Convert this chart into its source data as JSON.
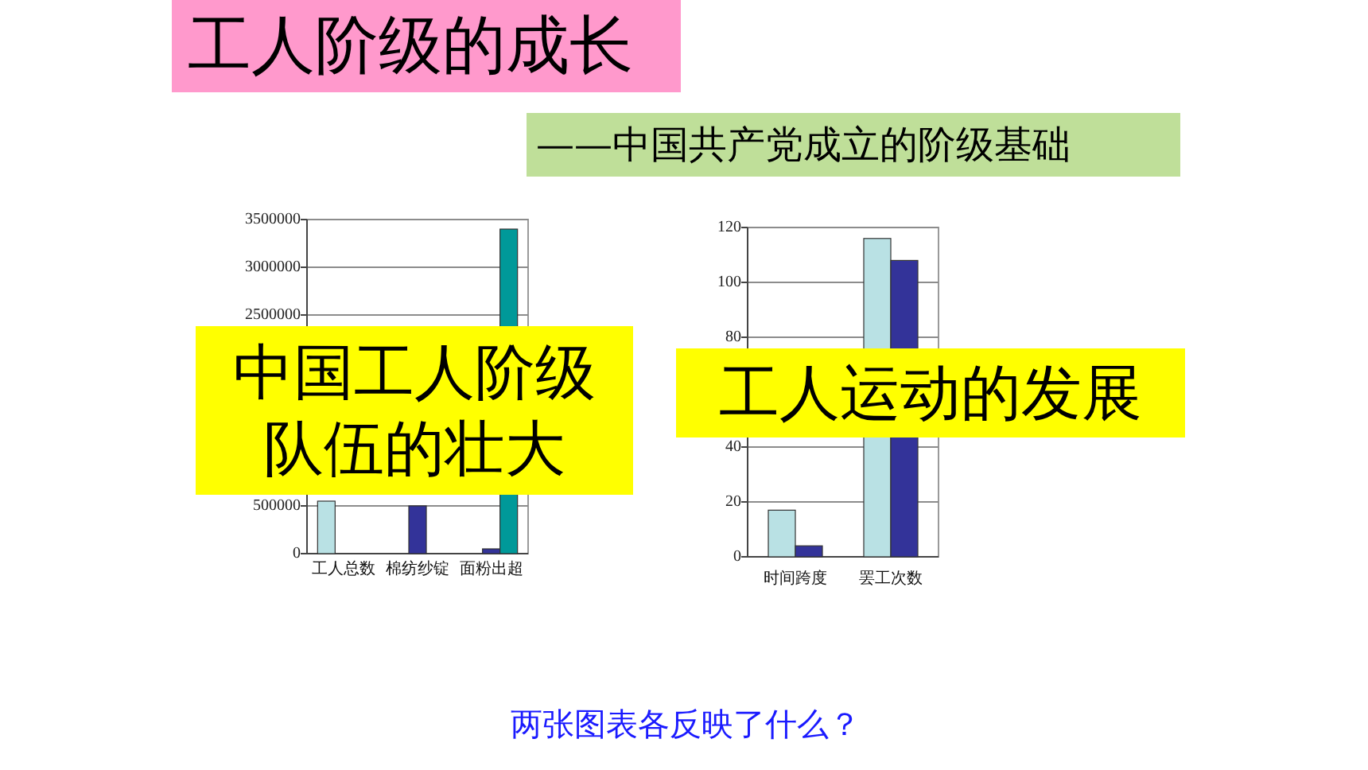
{
  "chart_data": [
    {
      "type": "other",
      "title": "工人阶级的成长",
      "subtitle": "——中国共产党成立的阶级基础",
      "annotations": [
        "两张图表各反映了什么？"
      ]
    },
    {
      "type": "bar",
      "title": "中国工人阶级队伍的壮大",
      "categories": [
        "工人总数",
        "棉纺纱锭",
        "面粉出超"
      ],
      "series": [
        {
          "color": "#b9e1e4",
          "values": [
            550000,
            null,
            null
          ]
        },
        {
          "color": "#333399",
          "values": [
            null,
            500000,
            50000
          ]
        },
        {
          "color": "#009999",
          "values": [
            null,
            null,
            3400000
          ]
        }
      ],
      "ylim": [
        0,
        3500000
      ],
      "yticks": [
        0,
        500000,
        2500000,
        3000000,
        3500000
      ],
      "grid": "y"
    },
    {
      "type": "bar",
      "title": "工人运动的发展",
      "categories": [
        "时间跨度",
        "罢工次数"
      ],
      "series": [
        {
          "color": "#b9e1e4",
          "values": [
            17,
            116
          ]
        },
        {
          "color": "#333399",
          "values": [
            4,
            108
          ]
        }
      ],
      "ylim": [
        0,
        120
      ],
      "yticks": [
        0,
        20,
        40,
        80,
        100,
        120
      ],
      "grid": "y"
    }
  ]
}
